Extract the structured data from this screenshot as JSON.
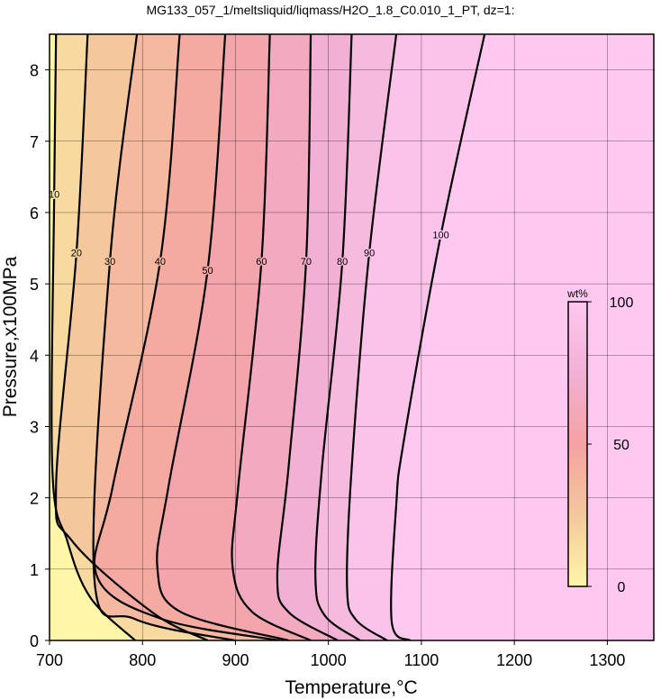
{
  "chart_data": {
    "type": "contour",
    "title": "MG133_057_1/meltsliquid/liqmass/H2O_1.8_C0.010_1_PT, dz=1:",
    "xlabel": "Temperature,°C",
    "ylabel": "Pressure,x100MPa",
    "xlim": [
      700,
      1350
    ],
    "ylim": [
      0,
      8.5
    ],
    "xticks": [
      700,
      800,
      900,
      1000,
      1100,
      1200,
      1300
    ],
    "yticks": [
      0,
      1,
      2,
      3,
      4,
      5,
      6,
      7,
      8
    ],
    "grid": true,
    "colormap": [
      {
        "value": 0,
        "color": "#fff6a8"
      },
      {
        "value": 25,
        "color": "#f4c89c"
      },
      {
        "value": 50,
        "color": "#f4a2a2"
      },
      {
        "value": 75,
        "color": "#f2b0d4"
      },
      {
        "value": 100,
        "color": "#ffc8f0"
      }
    ],
    "colorbar": {
      "label": "wt%",
      "lim": [
        0,
        100
      ],
      "ticks": [
        0,
        50,
        100
      ]
    },
    "series": [
      {
        "name": "10",
        "color": "#000000",
        "x": [
          707,
          705,
          703,
          719,
          744,
          792
        ],
        "y": [
          8.5,
          6.26,
          2.41,
          1.4,
          0.6,
          0
        ]
      },
      {
        "name": "20",
        "color": "#000000",
        "x": [
          741,
          729,
          707,
          724,
          811,
          870
        ],
        "y": [
          8.5,
          5.44,
          2.16,
          1.4,
          0.39,
          0
        ]
      },
      {
        "name": "30",
        "color": "#000000",
        "x": [
          794,
          765,
          748,
          792,
          899
        ],
        "y": [
          8.5,
          5.32,
          0.9,
          0.3,
          0
        ]
      },
      {
        "name": "40",
        "color": "#000000",
        "x": [
          840,
          819,
          768,
          751,
          821,
          947
        ],
        "y": [
          8.5,
          5.32,
          2.16,
          0.9,
          0.3,
          0
        ]
      },
      {
        "name": "50",
        "color": "#000000",
        "x": [
          889,
          870,
          828,
          816,
          841,
          957
        ],
        "y": [
          8.5,
          5.19,
          2.16,
          1.02,
          0.4,
          0
        ]
      },
      {
        "name": "60",
        "color": "#000000",
        "x": [
          937,
          928,
          903,
          897,
          918,
          981
        ],
        "y": [
          8.5,
          5.32,
          2.16,
          1.02,
          0.4,
          0
        ]
      },
      {
        "name": "70",
        "color": "#000000",
        "x": [
          981,
          976,
          957,
          945,
          957,
          1010
        ],
        "y": [
          8.5,
          5.32,
          2.41,
          0.9,
          0.4,
          0
        ]
      },
      {
        "name": "80",
        "color": "#000000",
        "x": [
          1025,
          1015,
          993,
          986,
          996,
          1034
        ],
        "y": [
          8.5,
          5.32,
          2.41,
          0.9,
          0.35,
          0
        ]
      },
      {
        "name": "90",
        "color": "#000000",
        "x": [
          1073,
          1044,
          1025,
          1020,
          1029,
          1063
        ],
        "y": [
          8.5,
          5.44,
          2.41,
          0.77,
          0.3,
          0
        ]
      },
      {
        "name": "100",
        "color": "#000000",
        "x": [
          1168,
          1121,
          1081,
          1073,
          1068,
          1088
        ],
        "y": [
          8.5,
          5.69,
          2.79,
          1.91,
          0.27,
          0
        ]
      }
    ]
  }
}
